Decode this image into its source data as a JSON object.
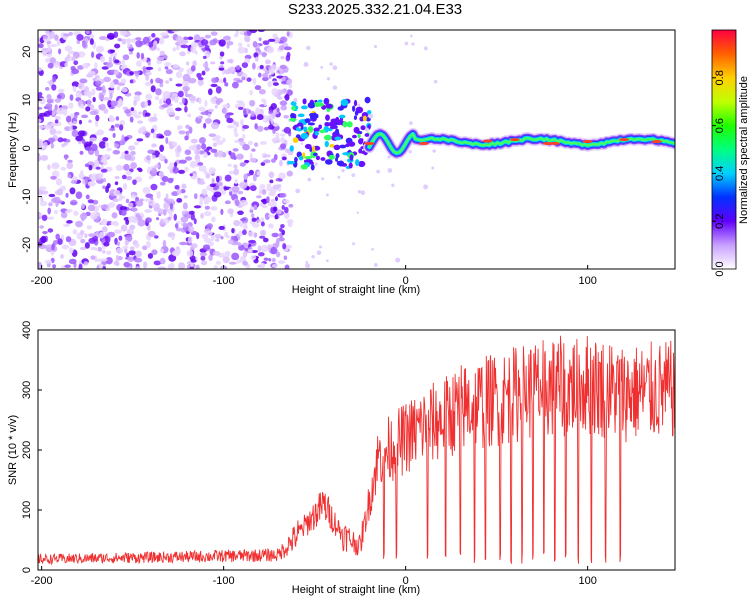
{
  "page": {
    "title": "S233.2025.332.21.04.E33"
  },
  "colors": {
    "snr_line": "#f03030",
    "axis": "#000000",
    "background": "#ffffff"
  },
  "chart_data": [
    {
      "type": "heatmap",
      "title": "S233.2025.332.21.04.E33",
      "xlabel": "Height of straight line (km)",
      "ylabel": "Frequency (Hz)",
      "xlim": [
        -202,
        148
      ],
      "ylim": [
        -25,
        24.5
      ],
      "xticks": [
        -200,
        -100,
        0,
        100
      ],
      "yticks": [
        -20,
        -10,
        0,
        10,
        20
      ],
      "colorbar": {
        "label": "Normalized spectral amplitude",
        "range": [
          0,
          1
        ],
        "ticks": [
          0.0,
          0.2,
          0.4,
          0.6,
          0.8
        ]
      },
      "description_regions": {
        "noise_region_x": [
          -202,
          -63
        ],
        "transition_x": [
          -63,
          -20
        ],
        "signal_band_center_hz": [
          1,
          2
        ],
        "signal_band_x": [
          -20,
          148
        ]
      }
    },
    {
      "type": "line",
      "xlabel": "Height of straight line (km)",
      "ylabel": "SNR (10 * v/v)",
      "xlim": [
        -202,
        148
      ],
      "ylim": [
        0,
        400
      ],
      "xticks": [
        -200,
        -100,
        0,
        100
      ],
      "yticks": [
        0,
        100,
        200,
        300,
        400
      ],
      "series": [
        {
          "name": "SNR",
          "anchors_x": [
            -202,
            -120,
            -70,
            -62,
            -45,
            -35,
            -25,
            -15,
            0,
            10,
            20,
            30,
            50,
            70,
            100,
            120,
            148
          ],
          "anchors_y": [
            18,
            22,
            25,
            50,
            110,
            60,
            40,
            190,
            220,
            240,
            250,
            270,
            285,
            300,
            310,
            295,
            300
          ]
        }
      ],
      "dropouts_x": [
        -12,
        -5,
        12,
        22,
        30,
        38,
        44,
        52,
        58,
        64,
        70,
        76,
        82,
        88,
        95,
        102,
        110,
        118
      ]
    }
  ]
}
